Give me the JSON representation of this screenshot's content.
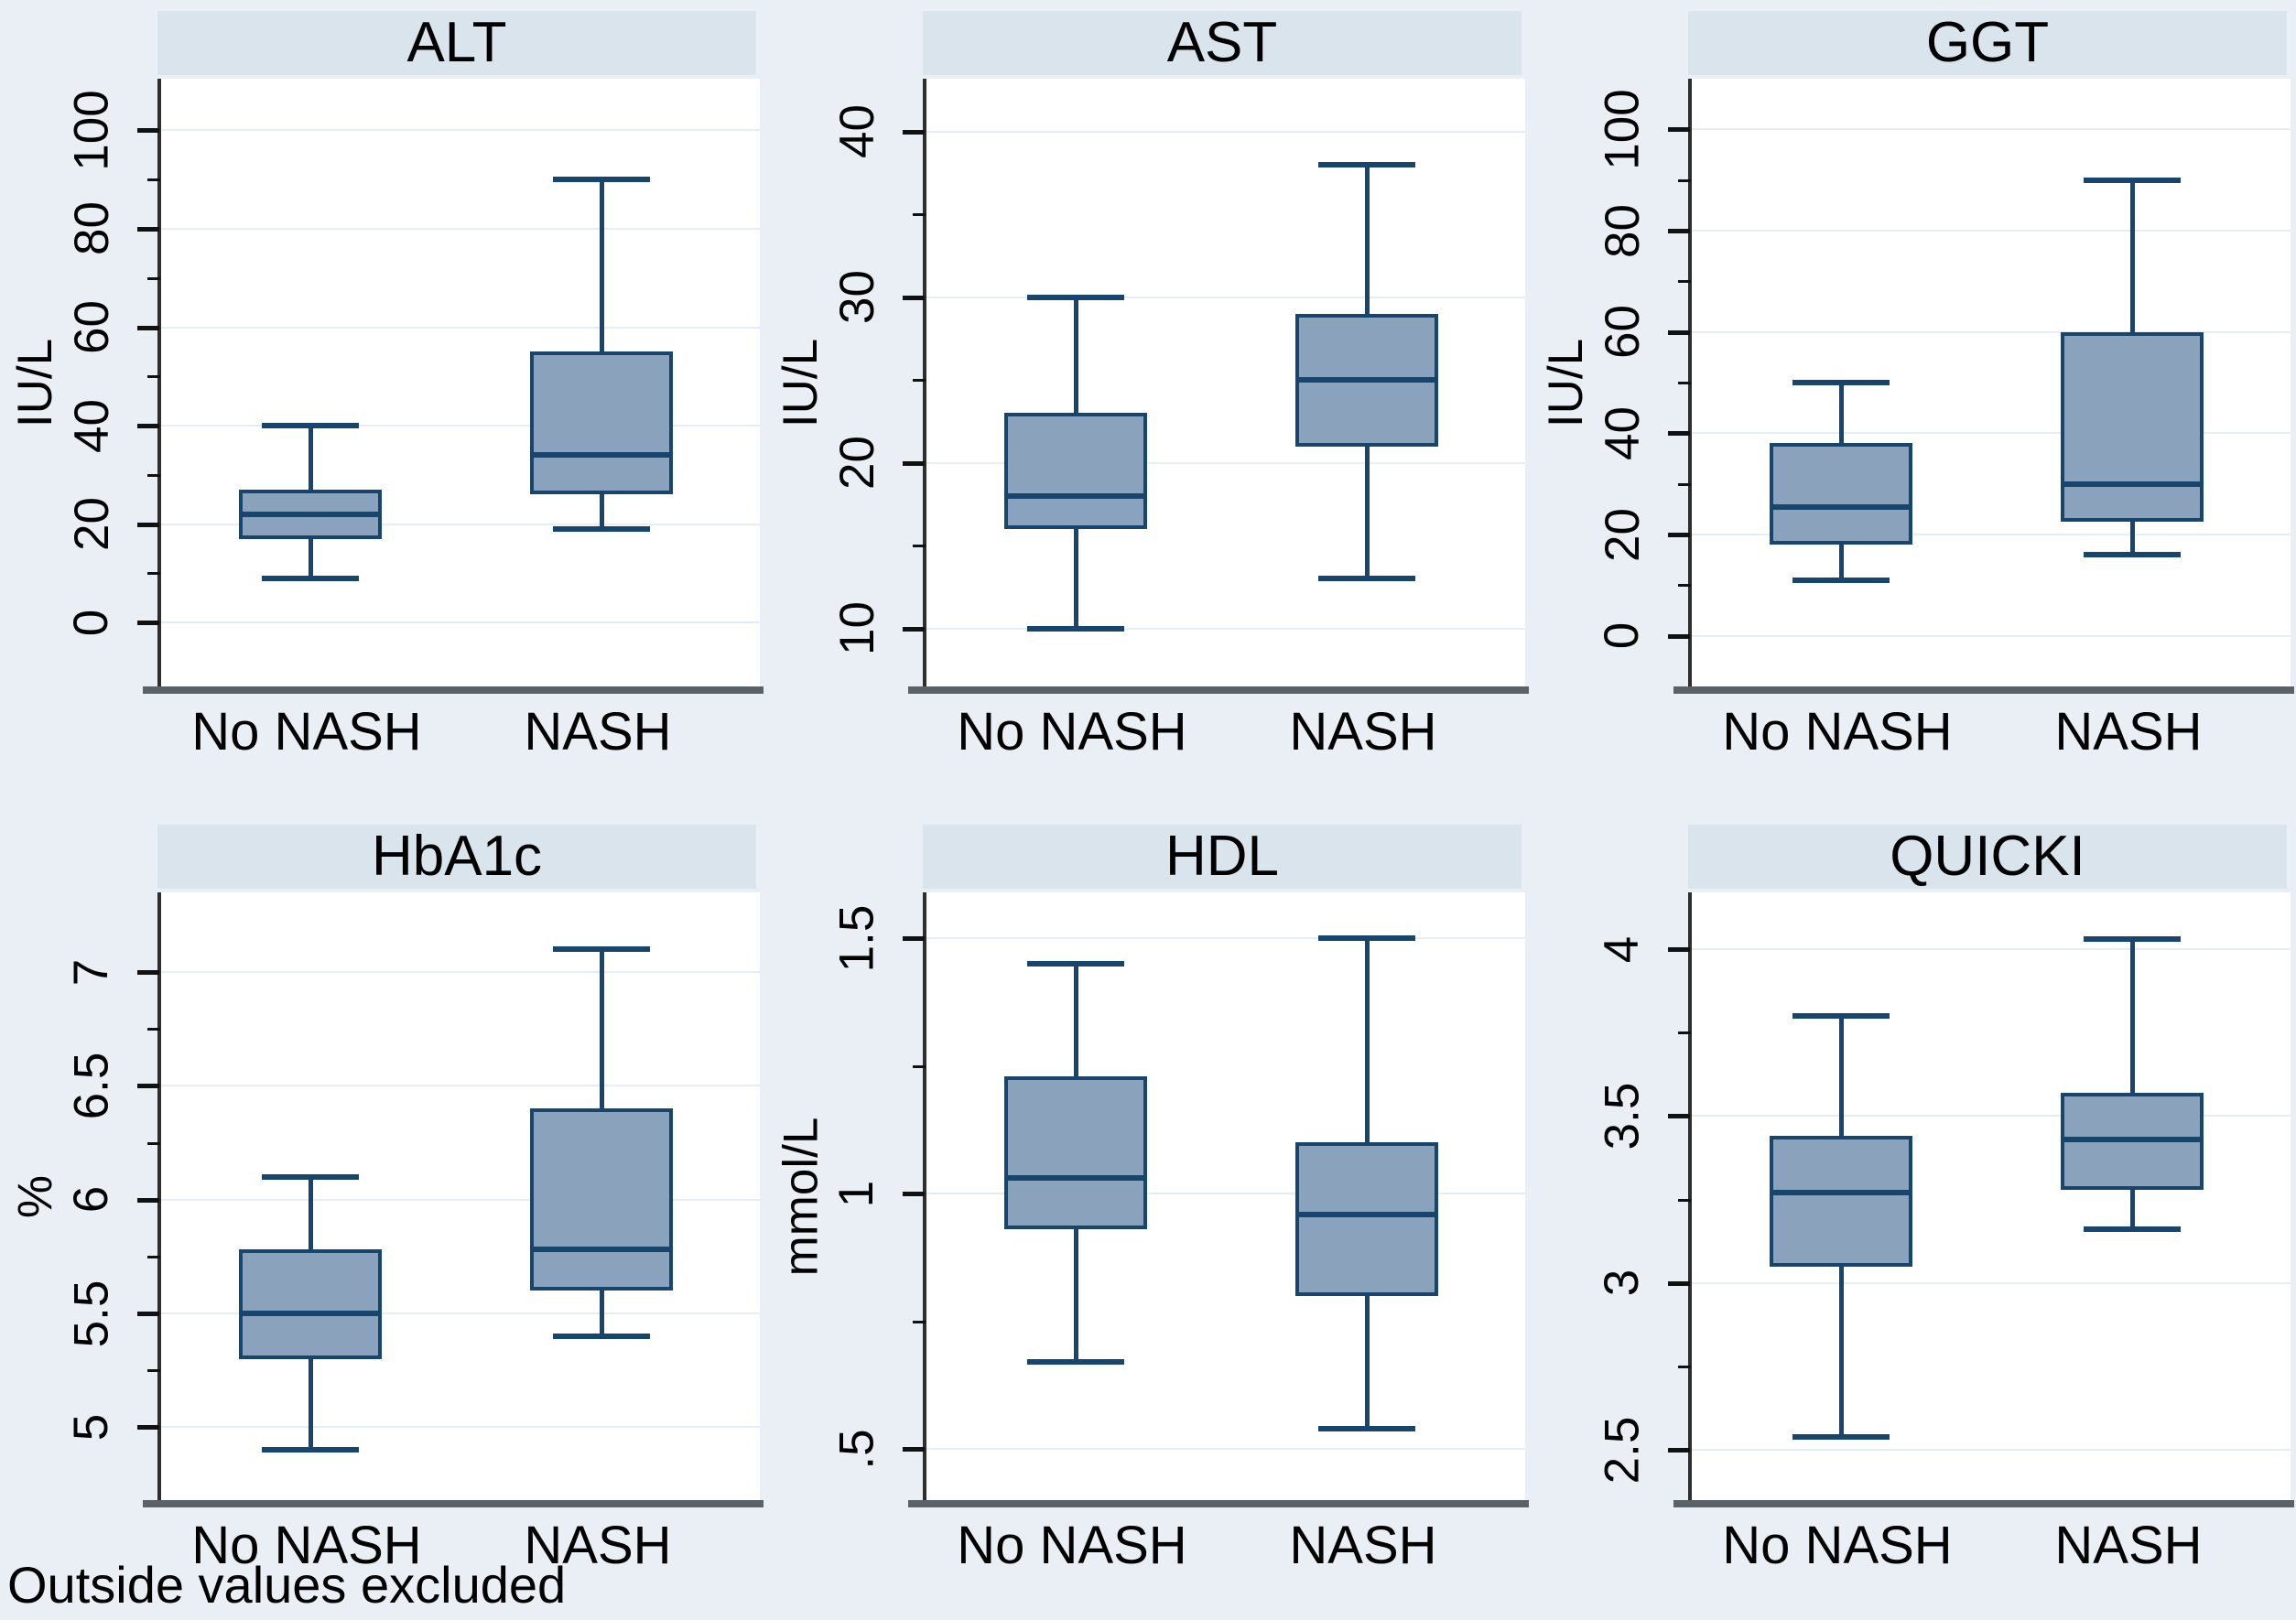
{
  "figure": {
    "note": "Outside values excluded"
  },
  "chart_data": {
    "type": "box",
    "layout": {
      "rows": 2,
      "cols": 3,
      "legend": "none",
      "grid": "horizontal-major-gridlines",
      "note_position": "bottom-left"
    },
    "groups": [
      "No NASH",
      "NASH"
    ],
    "note": "Outside values excluded",
    "colors": {
      "page_bg": "#E9EFF4",
      "title_band_bg": "#D9E4ED",
      "plot_bg": "#FFFFFF",
      "gridline": "#E5EEF5",
      "axis_line": "#2E2E2E",
      "baseline": "#5A6268",
      "box_fill": "#8BA2BC",
      "box_stroke": "#17456E",
      "text": "#000000"
    },
    "panels": [
      {
        "title": "ALT",
        "ylabel": "IU/L",
        "ylim": [
          -13,
          110.5
        ],
        "yticks": [
          0,
          20,
          40,
          60,
          80,
          100
        ],
        "ytick_labels": [
          "0",
          "20",
          "40",
          "60",
          "80",
          "100"
        ],
        "x_categories": [
          "No NASH",
          "NASH"
        ],
        "series": [
          {
            "group": "No NASH",
            "whisker_low": 9,
            "q1": 17,
            "median": 22,
            "q3": 27,
            "whisker_high": 40
          },
          {
            "group": "NASH",
            "whisker_low": 19,
            "q1": 26,
            "median": 34,
            "q3": 55,
            "whisker_high": 90
          }
        ]
      },
      {
        "title": "AST",
        "ylabel": "IU/L",
        "ylim": [
          6.5,
          43.2
        ],
        "yticks": [
          10,
          20,
          30,
          40
        ],
        "ytick_labels": [
          "10",
          "20",
          "30",
          "40"
        ],
        "x_categories": [
          "No NASH",
          "NASH"
        ],
        "series": [
          {
            "group": "No NASH",
            "whisker_low": 10,
            "q1": 16,
            "median": 18,
            "q3": 23,
            "whisker_high": 30
          },
          {
            "group": "NASH",
            "whisker_low": 13,
            "q1": 21,
            "median": 25,
            "q3": 29,
            "whisker_high": 38
          }
        ]
      },
      {
        "title": "GGT",
        "ylabel": "IU/L",
        "ylim": [
          -10,
          110
        ],
        "yticks": [
          0,
          20,
          40,
          60,
          80,
          100
        ],
        "ytick_labels": [
          "0",
          "20",
          "40",
          "60",
          "80",
          "100"
        ],
        "x_categories": [
          "No NASH",
          "NASH"
        ],
        "series": [
          {
            "group": "No NASH",
            "whisker_low": 11,
            "q1": 18,
            "median": 25.5,
            "q3": 38,
            "whisker_high": 50
          },
          {
            "group": "NASH",
            "whisker_low": 16,
            "q1": 22.5,
            "median": 30,
            "q3": 60,
            "whisker_high": 90
          }
        ]
      },
      {
        "title": "HbA1c",
        "ylabel": "%",
        "ylim": [
          4.68,
          7.35
        ],
        "yticks": [
          5,
          5.5,
          6,
          6.5,
          7
        ],
        "ytick_labels": [
          "5",
          "5.5",
          "6",
          "6.5",
          "7"
        ],
        "x_categories": [
          "No NASH",
          "NASH"
        ],
        "series": [
          {
            "group": "No NASH",
            "whisker_low": 4.9,
            "q1": 5.3,
            "median": 5.5,
            "q3": 5.78,
            "whisker_high": 6.1
          },
          {
            "group": "NASH",
            "whisker_low": 5.4,
            "q1": 5.6,
            "median": 5.78,
            "q3": 6.4,
            "whisker_high": 7.1
          }
        ]
      },
      {
        "title": "HDL",
        "ylabel": "mmol/L",
        "ylim": [
          0.4,
          1.59
        ],
        "yticks": [
          0.5,
          1,
          1.5
        ],
        "ytick_labels": [
          ".5",
          "1",
          "1.5"
        ],
        "x_categories": [
          "No NASH",
          "NASH"
        ],
        "series": [
          {
            "group": "No NASH",
            "whisker_low": 0.67,
            "q1": 0.93,
            "median": 1.03,
            "q3": 1.23,
            "whisker_high": 1.45
          },
          {
            "group": "NASH",
            "whisker_low": 0.54,
            "q1": 0.8,
            "median": 0.96,
            "q3": 1.1,
            "whisker_high": 1.5
          }
        ]
      },
      {
        "title": "QUICKI",
        "ylabel": "",
        "ylim": [
          2.35,
          4.17
        ],
        "yticks": [
          2.5,
          3,
          3.5,
          4
        ],
        "ytick_labels": [
          "2.5",
          "3",
          "3.5",
          "4"
        ],
        "x_categories": [
          "No NASH",
          "NASH"
        ],
        "series": [
          {
            "group": "No NASH",
            "whisker_low": 2.54,
            "q1": 3.05,
            "median": 3.27,
            "q3": 3.44,
            "whisker_high": 3.8
          },
          {
            "group": "NASH",
            "whisker_low": 3.16,
            "q1": 3.28,
            "median": 3.43,
            "q3": 3.57,
            "whisker_high": 4.03
          }
        ]
      }
    ]
  }
}
